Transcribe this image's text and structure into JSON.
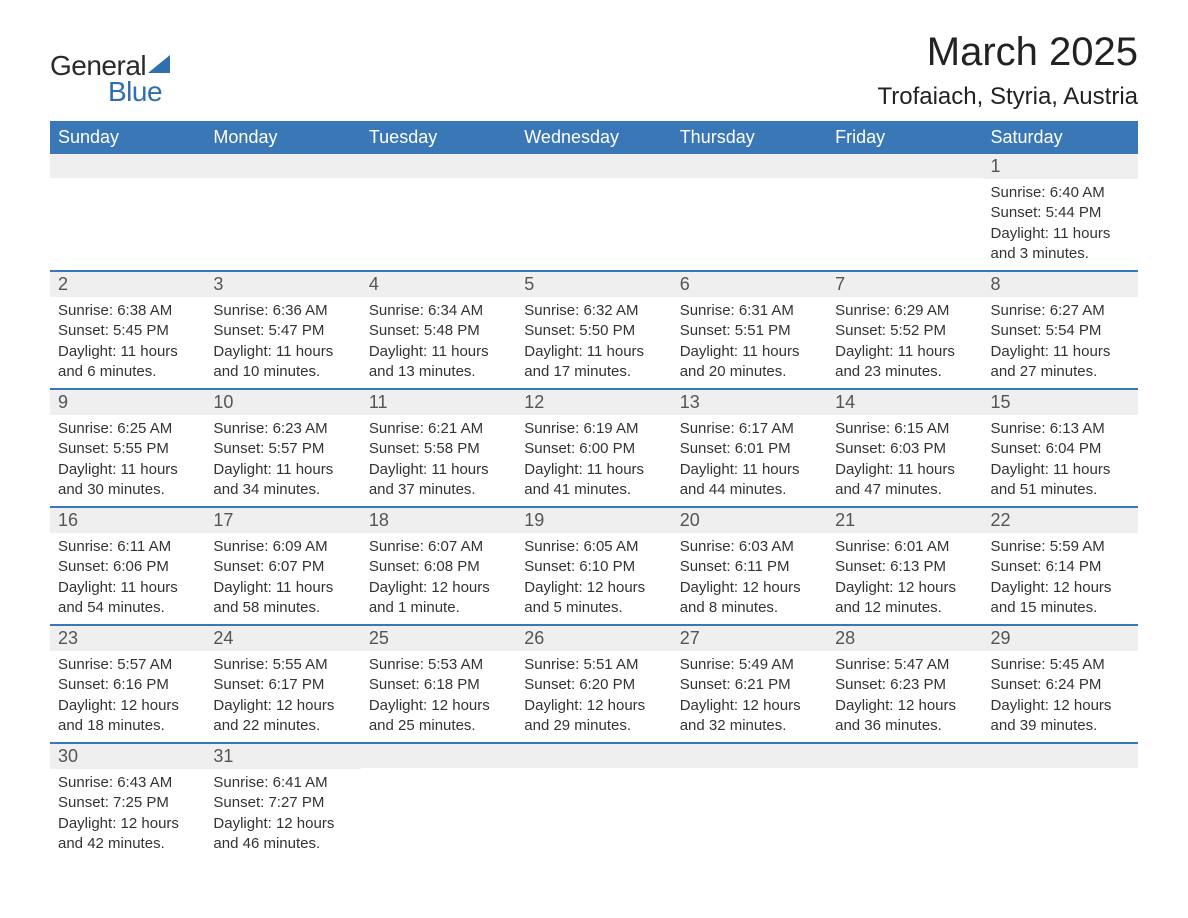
{
  "logo": {
    "word1": "General",
    "word2": "Blue"
  },
  "title": "March 2025",
  "location": "Trofaiach, Styria, Austria",
  "colors": {
    "header_bg": "#3a77b7",
    "header_fg": "#ffffff",
    "grid_line": "#3a77b7",
    "daynum_bg": "#efefef",
    "logo_accent": "#2f6fb0",
    "text": "#333333",
    "background": "#ffffff"
  },
  "typography": {
    "title_fontsize": 40,
    "location_fontsize": 24,
    "header_fontsize": 18,
    "daynum_fontsize": 18,
    "detail_fontsize": 15
  },
  "weekdays": [
    "Sunday",
    "Monday",
    "Tuesday",
    "Wednesday",
    "Thursday",
    "Friday",
    "Saturday"
  ],
  "weeks": [
    [
      null,
      null,
      null,
      null,
      null,
      null,
      {
        "d": "1",
        "sr": "Sunrise: 6:40 AM",
        "ss": "Sunset: 5:44 PM",
        "dl1": "Daylight: 11 hours",
        "dl2": "and 3 minutes."
      }
    ],
    [
      {
        "d": "2",
        "sr": "Sunrise: 6:38 AM",
        "ss": "Sunset: 5:45 PM",
        "dl1": "Daylight: 11 hours",
        "dl2": "and 6 minutes."
      },
      {
        "d": "3",
        "sr": "Sunrise: 6:36 AM",
        "ss": "Sunset: 5:47 PM",
        "dl1": "Daylight: 11 hours",
        "dl2": "and 10 minutes."
      },
      {
        "d": "4",
        "sr": "Sunrise: 6:34 AM",
        "ss": "Sunset: 5:48 PM",
        "dl1": "Daylight: 11 hours",
        "dl2": "and 13 minutes."
      },
      {
        "d": "5",
        "sr": "Sunrise: 6:32 AM",
        "ss": "Sunset: 5:50 PM",
        "dl1": "Daylight: 11 hours",
        "dl2": "and 17 minutes."
      },
      {
        "d": "6",
        "sr": "Sunrise: 6:31 AM",
        "ss": "Sunset: 5:51 PM",
        "dl1": "Daylight: 11 hours",
        "dl2": "and 20 minutes."
      },
      {
        "d": "7",
        "sr": "Sunrise: 6:29 AM",
        "ss": "Sunset: 5:52 PM",
        "dl1": "Daylight: 11 hours",
        "dl2": "and 23 minutes."
      },
      {
        "d": "8",
        "sr": "Sunrise: 6:27 AM",
        "ss": "Sunset: 5:54 PM",
        "dl1": "Daylight: 11 hours",
        "dl2": "and 27 minutes."
      }
    ],
    [
      {
        "d": "9",
        "sr": "Sunrise: 6:25 AM",
        "ss": "Sunset: 5:55 PM",
        "dl1": "Daylight: 11 hours",
        "dl2": "and 30 minutes."
      },
      {
        "d": "10",
        "sr": "Sunrise: 6:23 AM",
        "ss": "Sunset: 5:57 PM",
        "dl1": "Daylight: 11 hours",
        "dl2": "and 34 minutes."
      },
      {
        "d": "11",
        "sr": "Sunrise: 6:21 AM",
        "ss": "Sunset: 5:58 PM",
        "dl1": "Daylight: 11 hours",
        "dl2": "and 37 minutes."
      },
      {
        "d": "12",
        "sr": "Sunrise: 6:19 AM",
        "ss": "Sunset: 6:00 PM",
        "dl1": "Daylight: 11 hours",
        "dl2": "and 41 minutes."
      },
      {
        "d": "13",
        "sr": "Sunrise: 6:17 AM",
        "ss": "Sunset: 6:01 PM",
        "dl1": "Daylight: 11 hours",
        "dl2": "and 44 minutes."
      },
      {
        "d": "14",
        "sr": "Sunrise: 6:15 AM",
        "ss": "Sunset: 6:03 PM",
        "dl1": "Daylight: 11 hours",
        "dl2": "and 47 minutes."
      },
      {
        "d": "15",
        "sr": "Sunrise: 6:13 AM",
        "ss": "Sunset: 6:04 PM",
        "dl1": "Daylight: 11 hours",
        "dl2": "and 51 minutes."
      }
    ],
    [
      {
        "d": "16",
        "sr": "Sunrise: 6:11 AM",
        "ss": "Sunset: 6:06 PM",
        "dl1": "Daylight: 11 hours",
        "dl2": "and 54 minutes."
      },
      {
        "d": "17",
        "sr": "Sunrise: 6:09 AM",
        "ss": "Sunset: 6:07 PM",
        "dl1": "Daylight: 11 hours",
        "dl2": "and 58 minutes."
      },
      {
        "d": "18",
        "sr": "Sunrise: 6:07 AM",
        "ss": "Sunset: 6:08 PM",
        "dl1": "Daylight: 12 hours",
        "dl2": "and 1 minute."
      },
      {
        "d": "19",
        "sr": "Sunrise: 6:05 AM",
        "ss": "Sunset: 6:10 PM",
        "dl1": "Daylight: 12 hours",
        "dl2": "and 5 minutes."
      },
      {
        "d": "20",
        "sr": "Sunrise: 6:03 AM",
        "ss": "Sunset: 6:11 PM",
        "dl1": "Daylight: 12 hours",
        "dl2": "and 8 minutes."
      },
      {
        "d": "21",
        "sr": "Sunrise: 6:01 AM",
        "ss": "Sunset: 6:13 PM",
        "dl1": "Daylight: 12 hours",
        "dl2": "and 12 minutes."
      },
      {
        "d": "22",
        "sr": "Sunrise: 5:59 AM",
        "ss": "Sunset: 6:14 PM",
        "dl1": "Daylight: 12 hours",
        "dl2": "and 15 minutes."
      }
    ],
    [
      {
        "d": "23",
        "sr": "Sunrise: 5:57 AM",
        "ss": "Sunset: 6:16 PM",
        "dl1": "Daylight: 12 hours",
        "dl2": "and 18 minutes."
      },
      {
        "d": "24",
        "sr": "Sunrise: 5:55 AM",
        "ss": "Sunset: 6:17 PM",
        "dl1": "Daylight: 12 hours",
        "dl2": "and 22 minutes."
      },
      {
        "d": "25",
        "sr": "Sunrise: 5:53 AM",
        "ss": "Sunset: 6:18 PM",
        "dl1": "Daylight: 12 hours",
        "dl2": "and 25 minutes."
      },
      {
        "d": "26",
        "sr": "Sunrise: 5:51 AM",
        "ss": "Sunset: 6:20 PM",
        "dl1": "Daylight: 12 hours",
        "dl2": "and 29 minutes."
      },
      {
        "d": "27",
        "sr": "Sunrise: 5:49 AM",
        "ss": "Sunset: 6:21 PM",
        "dl1": "Daylight: 12 hours",
        "dl2": "and 32 minutes."
      },
      {
        "d": "28",
        "sr": "Sunrise: 5:47 AM",
        "ss": "Sunset: 6:23 PM",
        "dl1": "Daylight: 12 hours",
        "dl2": "and 36 minutes."
      },
      {
        "d": "29",
        "sr": "Sunrise: 5:45 AM",
        "ss": "Sunset: 6:24 PM",
        "dl1": "Daylight: 12 hours",
        "dl2": "and 39 minutes."
      }
    ],
    [
      {
        "d": "30",
        "sr": "Sunrise: 6:43 AM",
        "ss": "Sunset: 7:25 PM",
        "dl1": "Daylight: 12 hours",
        "dl2": "and 42 minutes."
      },
      {
        "d": "31",
        "sr": "Sunrise: 6:41 AM",
        "ss": "Sunset: 7:27 PM",
        "dl1": "Daylight: 12 hours",
        "dl2": "and 46 minutes."
      },
      null,
      null,
      null,
      null,
      null
    ]
  ]
}
